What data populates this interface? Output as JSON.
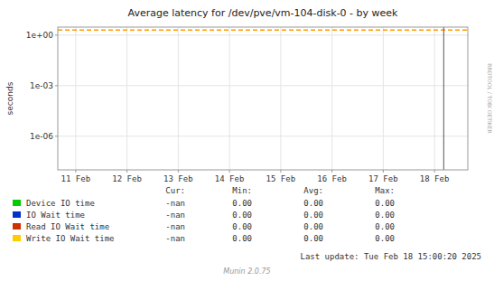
{
  "chart_data": {
    "type": "line",
    "title": "Average latency for /dev/pve/vm-104-disk-0 - by week",
    "y_label": "seconds",
    "log": "y",
    "grid": true,
    "legend": "bottom",
    "xlim": [
      -0.35,
      7.65
    ],
    "xticks": [
      {
        "value": 0,
        "label": "11 Feb"
      },
      {
        "value": 1,
        "label": "12 Feb"
      },
      {
        "value": 2,
        "label": "13 Feb"
      },
      {
        "value": 3,
        "label": "14 Feb"
      },
      {
        "value": 4,
        "label": "15 Feb"
      },
      {
        "value": 5,
        "label": "16 Feb"
      },
      {
        "value": 6,
        "label": "17 Feb"
      },
      {
        "value": 7,
        "label": "18 Feb"
      }
    ],
    "ylim": [
      1e-08,
      3.0
    ],
    "yticks": [
      {
        "value": 1e-06,
        "label": "1e-06"
      },
      {
        "value": 0.001,
        "label": "1e-03"
      },
      {
        "value": 1,
        "label": "1e+00"
      }
    ],
    "series": [
      {
        "name": "Device IO time",
        "color": "#00cc00"
      },
      {
        "name": "IO Wait time",
        "color": "#0033cc"
      },
      {
        "name": "Read IO Wait time",
        "color": "#cc3300"
      },
      {
        "name": "Write IO Wait time",
        "color": "#ffcc00"
      }
    ],
    "table": {
      "columns": [
        "Cur:",
        "Min:",
        "Avg:",
        "Max:"
      ],
      "rows": [
        [
          "-nan",
          "0.00",
          "0.00",
          "0.00"
        ],
        [
          "-nan",
          "0.00",
          "0.00",
          "0.00"
        ],
        [
          "-nan",
          "0.00",
          "0.00",
          "0.00"
        ],
        [
          "-nan",
          "0.00",
          "0.00",
          "0.00"
        ]
      ]
    },
    "annotations": [
      {
        "type": "hline",
        "y": 2.0,
        "color": "#ff9900",
        "line_style": "dashed"
      },
      {
        "type": "vline",
        "x": 7.18,
        "color": "#555555",
        "line_style": "solid"
      },
      {
        "type": "text",
        "text": "RRDTOOL / TOBI OETIKER"
      },
      {
        "type": "text",
        "text": "Last update: Tue Feb 18 15:00:20 2025"
      },
      {
        "type": "text",
        "text": "Munin 2.0.75"
      }
    ]
  }
}
